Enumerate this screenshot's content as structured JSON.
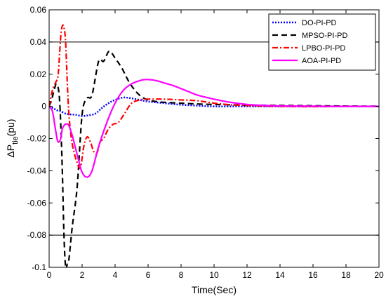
{
  "chart_data": {
    "type": "line",
    "xlabel": "Time(Sec)",
    "ylabel": {
      "main": "ΔP",
      "sub": "tie",
      "unit": "(pu)"
    },
    "xlim": [
      0,
      20
    ],
    "ylim": [
      -0.1,
      0.06
    ],
    "xticks": [
      0,
      2,
      4,
      6,
      8,
      10,
      12,
      14,
      16,
      18,
      20
    ],
    "yticks": [
      -0.1,
      -0.08,
      -0.06,
      -0.04,
      -0.02,
      0,
      0.02,
      0.04,
      0.06
    ],
    "ytick_labels": [
      "-0.1",
      "-0.08",
      "-0.06",
      "-0.04",
      "-0.02",
      "0",
      "0.02",
      "0.04",
      "0.06"
    ],
    "reference_lines": [
      0.04,
      -0.08
    ],
    "legend_position": "top-right",
    "series": [
      {
        "name": "DO-PI-PD",
        "color": "#0000ff",
        "style": "dotted",
        "x": [
          0,
          0.3,
          0.5,
          0.7,
          1.0,
          1.3,
          1.6,
          2.0,
          2.4,
          2.8,
          3.2,
          3.6,
          4.0,
          4.5,
          5.0,
          5.5,
          6.0,
          7.0,
          8.0,
          9.0,
          10.0,
          12.0,
          14.0,
          16.0,
          18.0,
          20.0
        ],
        "y": [
          0,
          -0.0015,
          -0.0025,
          -0.003,
          -0.0045,
          -0.005,
          -0.0052,
          -0.006,
          -0.0055,
          -0.0045,
          -0.001,
          0.002,
          0.004,
          0.0055,
          0.005,
          0.004,
          0.003,
          0.002,
          0.001,
          0.0005,
          0.0,
          0.0,
          0.0,
          0.0,
          0.0,
          0.0
        ]
      },
      {
        "name": "MPSO-PI-PD",
        "color": "#000000",
        "style": "dashed",
        "x": [
          0,
          0.15,
          0.3,
          0.45,
          0.6,
          0.7,
          0.8,
          0.9,
          1.0,
          1.1,
          1.2,
          1.4,
          1.7,
          2.0,
          2.3,
          2.6,
          3.0,
          3.3,
          3.6,
          3.8,
          4.0,
          4.4,
          4.8,
          5.2,
          5.6,
          6.0,
          6.5,
          7.0,
          8.0,
          9.0,
          10.0,
          11.0,
          12.0,
          14.0,
          16.0,
          18.0,
          20.0
        ],
        "y": [
          0,
          0.004,
          0.01,
          0.014,
          0.008,
          -0.01,
          -0.04,
          -0.08,
          -0.1,
          -0.098,
          -0.095,
          -0.075,
          -0.05,
          -0.005,
          0.005,
          0.007,
          0.028,
          0.028,
          0.034,
          0.033,
          0.03,
          0.024,
          0.016,
          0.01,
          0.006,
          0.004,
          0.003,
          0.0025,
          0.002,
          0.0015,
          0.0012,
          0.001,
          0.0008,
          0.0006,
          0.0004,
          0.0002,
          0.0001
        ]
      },
      {
        "name": "LPBO-PI-PD",
        "color": "#ff0000",
        "style": "dash-dot",
        "x": [
          0,
          0.2,
          0.4,
          0.55,
          0.7,
          0.8,
          0.9,
          1.0,
          1.1,
          1.2,
          1.35,
          1.5,
          1.7,
          1.9,
          2.1,
          2.3,
          2.5,
          2.7,
          2.9,
          3.1,
          3.3,
          3.6,
          3.9,
          4.2,
          4.6,
          5.0,
          5.5,
          6.0,
          7.0,
          8.0,
          9.0,
          10.0,
          11.0,
          12.0,
          13.0,
          14.0,
          16.0,
          18.0,
          20.0
        ],
        "y": [
          0,
          0.01,
          0.015,
          0.02,
          0.043,
          0.05,
          0.049,
          0.04,
          0.015,
          -0.005,
          -0.02,
          -0.028,
          -0.035,
          -0.038,
          -0.025,
          -0.019,
          -0.022,
          -0.028,
          -0.029,
          -0.022,
          -0.02,
          -0.014,
          -0.011,
          -0.01,
          -0.004,
          0.002,
          0.004,
          0.0045,
          0.0045,
          0.004,
          0.0035,
          0.002,
          0.001,
          0.0005,
          0.0002,
          0.0,
          -0.0002,
          0.0,
          0.0
        ]
      },
      {
        "name": "AOA-PI-PD",
        "color": "#ff00ff",
        "style": "solid",
        "x": [
          0,
          0.2,
          0.35,
          0.5,
          0.6,
          0.7,
          0.8,
          0.9,
          1.0,
          1.1,
          1.2,
          1.4,
          1.6,
          1.8,
          2.0,
          2.3,
          2.6,
          3.0,
          3.5,
          4.0,
          4.5,
          5.0,
          5.5,
          5.9,
          6.5,
          7.0,
          7.5,
          8.0,
          8.5,
          9.0,
          10.0,
          11.0,
          12.0,
          13.0,
          14.0,
          16.0,
          18.0,
          20.0
        ],
        "y": [
          0,
          -0.003,
          -0.012,
          -0.021,
          -0.022,
          -0.02,
          -0.014,
          -0.012,
          -0.011,
          -0.011,
          -0.012,
          -0.018,
          -0.026,
          -0.034,
          -0.041,
          -0.044,
          -0.04,
          -0.025,
          -0.01,
          0.002,
          0.01,
          0.014,
          0.016,
          0.0167,
          0.016,
          0.0145,
          0.013,
          0.011,
          0.009,
          0.007,
          0.0045,
          0.0025,
          0.0012,
          0.0006,
          0.0003,
          0.0001,
          0.0,
          0.0
        ]
      }
    ]
  }
}
